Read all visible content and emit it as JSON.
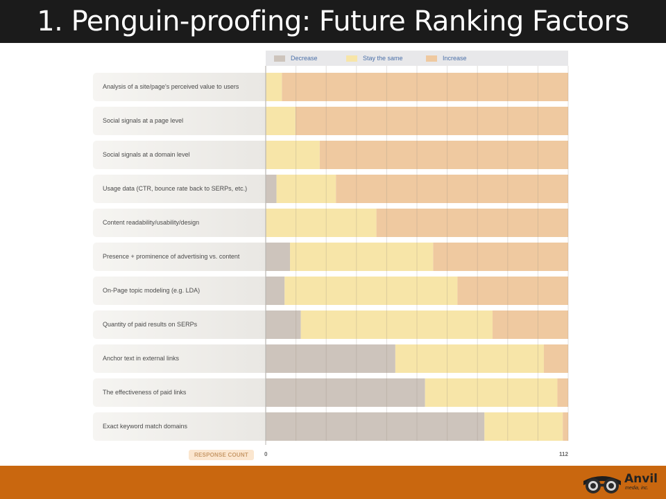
{
  "slide": {
    "title": "1. Penguin-proofing: Future Ranking Factors"
  },
  "legend": {
    "items": [
      {
        "label": "Decrease",
        "color": "#cdc4bc"
      },
      {
        "label": "Stay the same",
        "color": "#f7e5a8"
      },
      {
        "label": "Increase",
        "color": "#efc9a0"
      }
    ]
  },
  "chart_data": {
    "type": "bar",
    "orientation": "horizontal",
    "stacked": true,
    "categories": [
      "Analysis of a site/page's perceived value to users",
      "Social signals at a page level",
      "Social signals at a domain level",
      "Usage data (CTR, bounce rate back to SERPs, etc.)",
      "Content readability/usability/design",
      "Presence + prominence of advertising vs. content",
      "On-Page topic modeling (e.g. LDA)",
      "Quantity of paid results on SERPs",
      "Anchor text in external links",
      "The effectiveness of paid links",
      "Exact keyword match domains"
    ],
    "series": [
      {
        "name": "Decrease",
        "values": [
          0,
          0,
          0,
          4,
          0,
          9,
          7,
          13,
          48,
          59,
          81
        ]
      },
      {
        "name": "Stay the same",
        "values": [
          6,
          11,
          20,
          22,
          41,
          53,
          64,
          71,
          55,
          49,
          29
        ]
      },
      {
        "name": "Increase",
        "values": [
          106,
          101,
          92,
          86,
          71,
          50,
          41,
          28,
          9,
          4,
          2
        ]
      }
    ],
    "xlim": [
      0,
      112
    ],
    "x_ticks": [
      "0",
      "112"
    ],
    "xlabel": "RESPONSE COUNT",
    "grid": true,
    "legend_position": "top"
  },
  "footer": {
    "logo_name": "Anvil",
    "logo_tagline": "media, inc.",
    "logo_icon": "goggles-icon"
  }
}
